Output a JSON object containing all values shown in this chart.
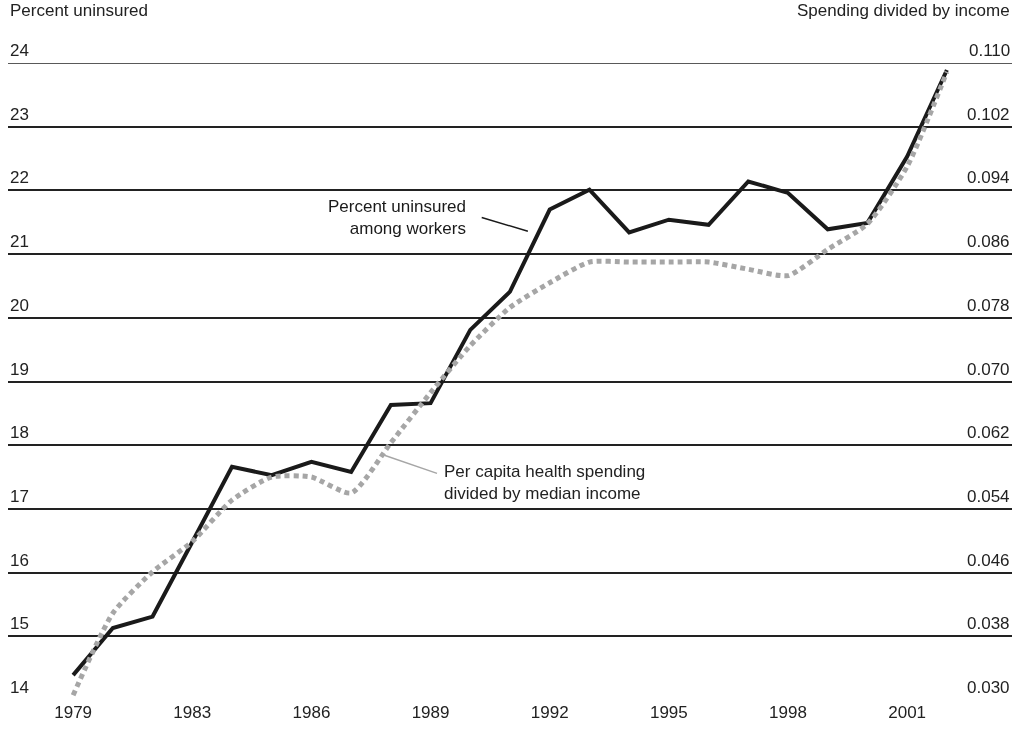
{
  "chart_data": {
    "type": "line",
    "ylabel": "Percent uninsured",
    "y2label": "Spending divided by income",
    "categories": [
      "1979",
      null,
      null,
      "1983",
      null,
      null,
      "1986",
      null,
      null,
      "1989",
      null,
      null,
      "1992",
      null,
      null,
      "1995",
      null,
      null,
      "1998",
      null,
      null,
      "2001",
      null
    ],
    "series": [
      {
        "name": "Percent uninsured among workers",
        "color": "#1a1a1a",
        "line_style": "solid",
        "values": [
          14.39,
          15.13,
          15.31,
          16.48,
          17.66,
          17.53,
          17.74,
          17.58,
          18.63,
          18.66,
          19.81,
          20.41,
          21.7,
          22.01,
          21.34,
          21.54,
          21.46,
          22.14,
          21.96,
          21.39,
          21.49,
          22.53,
          23.89
        ]
      },
      {
        "name": "Per capita health spending divided by median income",
        "color": "#a6a6a6",
        "line_style": "dotted",
        "axis": "y2",
        "values": [
          0.0306,
          0.0409,
          0.0461,
          0.0499,
          0.0551,
          0.058,
          0.058,
          0.056,
          0.0623,
          0.0686,
          0.0745,
          0.0793,
          0.0824,
          0.085,
          0.085,
          0.085,
          0.085,
          0.0841,
          0.0833,
          0.0866,
          0.0898,
          0.097,
          0.1089
        ]
      }
    ],
    "ylim": [
      14,
      24
    ],
    "yticks": [
      14,
      15,
      16,
      17,
      18,
      19,
      20,
      21,
      22,
      23,
      24
    ],
    "y2lim": [
      0.03,
      0.11
    ],
    "y2ticks": [
      {
        "value": 0.03,
        "label": "0.030"
      },
      {
        "value": 0.038,
        "label": "0.038"
      },
      {
        "value": 0.046,
        "label": "0.046"
      },
      {
        "value": 0.054,
        "label": "0.054"
      },
      {
        "value": 0.062,
        "label": "0.062"
      },
      {
        "value": 0.07,
        "label": "0.070"
      },
      {
        "value": 0.078,
        "label": "0.078"
      },
      {
        "value": 0.086,
        "label": "0.086"
      },
      {
        "value": 0.094,
        "label": "0.094"
      },
      {
        "value": 0.102,
        "label": "0.102"
      },
      {
        "value": 0.11,
        "label": "0.110"
      }
    ],
    "grid": "y",
    "marker": "none"
  }
}
